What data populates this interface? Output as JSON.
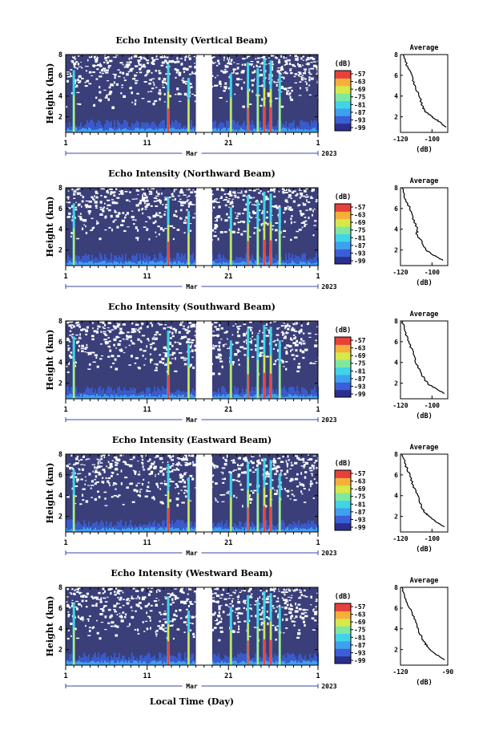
{
  "chart_data": {
    "type": "heatmap",
    "shared": {
      "x_label": "Local Time (Day)",
      "x_month": "Mar",
      "x_year": "2023",
      "x_ticks": [
        "1",
        "11",
        "21",
        "1"
      ],
      "x_range_days": [
        1,
        32
      ],
      "y_label": "Height (km)",
      "y_ticks": [
        "2",
        "4",
        "6",
        "8"
      ],
      "y_range_km": [
        0.5,
        8
      ],
      "colorbar_unit": "(dB)",
      "colorbar_ticks": [
        "-57",
        "-63",
        "-69",
        "-75",
        "-81",
        "-87",
        "-93",
        "-99"
      ],
      "data_gap_days": [
        17,
        19
      ],
      "avg_title": "Average",
      "avg_xlabel": "(dB)"
    },
    "panels": [
      {
        "title": "Echo Intensity (Vertical Beam)",
        "avg_xticks": [
          "-120",
          "-100"
        ],
        "avg_xlim": [
          -120,
          -90
        ],
        "avg_profile": {
          "height_km": [
            8,
            7,
            6,
            5,
            4,
            3,
            2.5,
            2,
            1.5,
            1
          ],
          "db": [
            -118,
            -116,
            -113,
            -111,
            -108,
            -106,
            -104,
            -100,
            -95,
            -91
          ]
        }
      },
      {
        "title": "Echo Intensity (Northward Beam)",
        "avg_xticks": [
          "-120",
          "-100"
        ],
        "avg_xlim": [
          -120,
          -90
        ],
        "avg_profile": {
          "height_km": [
            8,
            7,
            6,
            5,
            4,
            3.5,
            3,
            2,
            1.5,
            1
          ],
          "db": [
            -119,
            -117,
            -114,
            -112,
            -109,
            -110,
            -107,
            -104,
            -99,
            -93
          ]
        }
      },
      {
        "title": "Echo Intensity (Southward Beam)",
        "avg_xticks": [
          "-120",
          "-100"
        ],
        "avg_xlim": [
          -120,
          -90
        ],
        "avg_profile": {
          "height_km": [
            8,
            7,
            6,
            5,
            4,
            3,
            2.5,
            2,
            1.5,
            1
          ],
          "db": [
            -119,
            -117,
            -115,
            -112,
            -110,
            -107,
            -105,
            -103,
            -98,
            -92
          ]
        }
      },
      {
        "title": "Echo Intensity (Eastward Beam)",
        "avg_xticks": [
          "-120",
          "-100"
        ],
        "avg_xlim": [
          -120,
          -90
        ],
        "avg_profile": {
          "height_km": [
            8,
            7,
            6,
            5,
            4,
            3,
            2.5,
            2,
            1.5,
            1
          ],
          "db": [
            -119,
            -117,
            -114,
            -112,
            -109,
            -107,
            -105,
            -102,
            -98,
            -92
          ]
        }
      },
      {
        "title": "Echo Intensity (Westward Beam)",
        "avg_xticks": [
          "-120",
          "-90"
        ],
        "avg_xlim": [
          -120,
          -90
        ],
        "avg_profile": {
          "height_km": [
            8,
            7,
            6,
            5,
            4,
            3,
            2.5,
            2,
            1.5,
            1
          ],
          "db": [
            -119,
            -117,
            -114,
            -111,
            -109,
            -106,
            -104,
            -101,
            -97,
            -92
          ]
        }
      }
    ],
    "colormap": [
      "#2b2f8f",
      "#3a5fd8",
      "#3fa0f0",
      "#41d4e8",
      "#7fe8a0",
      "#d6e84a",
      "#f6b03a",
      "#e8403a"
    ]
  }
}
